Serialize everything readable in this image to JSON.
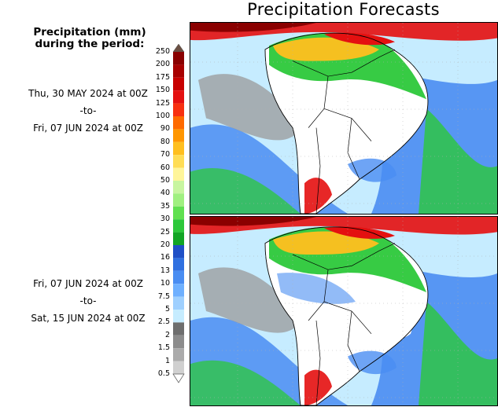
{
  "title": "Precipitation Forecasts",
  "legend": {
    "title_line1": "Precipitation (mm)",
    "title_line2": "during the period:",
    "bins": [
      {
        "label": "250",
        "color": "#6b5043"
      },
      {
        "label": "200",
        "color": "#8a0000"
      },
      {
        "label": "175",
        "color": "#a80000"
      },
      {
        "label": "150",
        "color": "#c80000"
      },
      {
        "label": "125",
        "color": "#e41010"
      },
      {
        "label": "100",
        "color": "#f83010"
      },
      {
        "label": "90",
        "color": "#ff6a00"
      },
      {
        "label": "80",
        "color": "#ff9600"
      },
      {
        "label": "70",
        "color": "#ffbf1f"
      },
      {
        "label": "60",
        "color": "#ffdd55"
      },
      {
        "label": "50",
        "color": "#fff59a"
      },
      {
        "label": "40",
        "color": "#c8f5a0"
      },
      {
        "label": "35",
        "color": "#a0f080"
      },
      {
        "label": "30",
        "color": "#60e050"
      },
      {
        "label": "25",
        "color": "#2cc83a"
      },
      {
        "label": "20",
        "color": "#12a524"
      },
      {
        "label": "16",
        "color": "#1f4fc6"
      },
      {
        "label": "13",
        "color": "#3070e0"
      },
      {
        "label": "10",
        "color": "#4a8df2"
      },
      {
        "label": "7.5",
        "color": "#6fb0ff"
      },
      {
        "label": "5",
        "color": "#9fd0ff"
      },
      {
        "label": "2.5",
        "color": "#c6ecff"
      },
      {
        "label": "2",
        "color": "#6e6e6e"
      },
      {
        "label": "1.5",
        "color": "#8c8c8c"
      },
      {
        "label": "1",
        "color": "#ababab"
      },
      {
        "label": "0.5",
        "color": "#d0d0d0"
      }
    ]
  },
  "period1": {
    "start": "Thu, 30 MAY 2024 at 00Z",
    "sep": "-to-",
    "end": "Fri, 07 JUN 2024 at 00Z"
  },
  "period2": {
    "start": "Fri, 07 JUN 2024 at 00Z",
    "sep": "-to-",
    "end": "Sat, 15 JUN 2024 at 00Z"
  },
  "colors": {
    "dry": "#ffffff",
    "trace": "#9a9a9a",
    "light": "#c6ecff",
    "moderate": "#4a8df2",
    "green": "#2cc83a",
    "heavy": "#ffbf1f",
    "intense": "#e41010",
    "extreme": "#8a0000",
    "border": "#000000",
    "grid": "#b0b0b0"
  }
}
